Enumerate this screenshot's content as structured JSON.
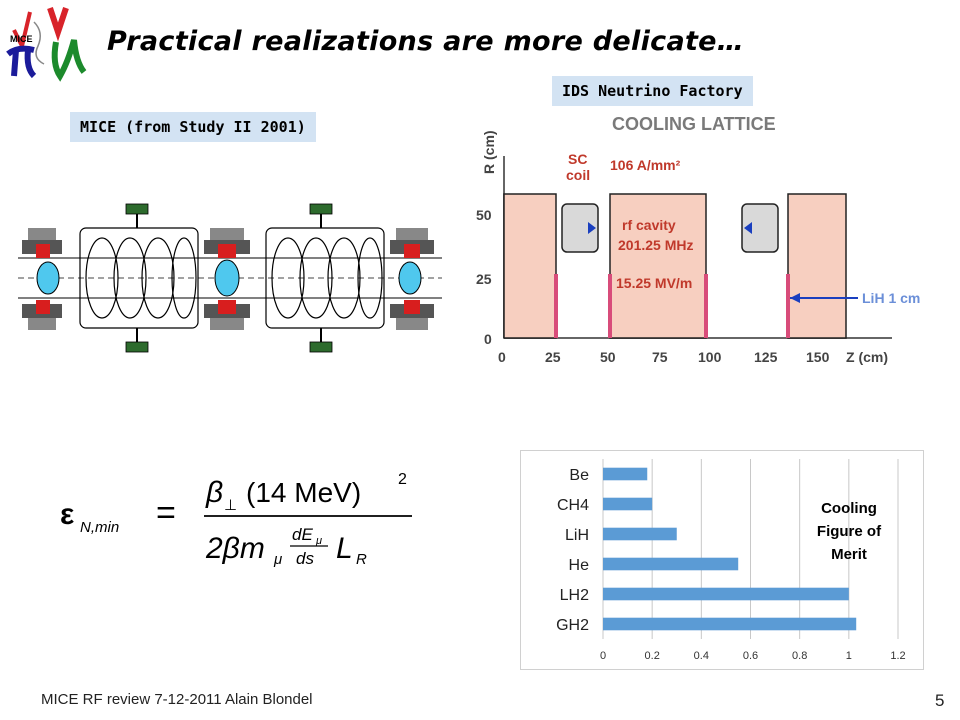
{
  "slide": {
    "title": "Practical realizations are more delicate…",
    "footer": "MICE RF review 7-12-2011 Alain Blondel",
    "page_number": "5"
  },
  "logo": {
    "text": "MICE"
  },
  "mice_panel": {
    "label": "MICE (from Study II 2001)"
  },
  "ids_panel": {
    "label": "IDS Neutrino Factory",
    "diagram_title": "COOLING LATTICE",
    "y_axis_label": "R (cm)",
    "x_axis_label": "Z (cm)",
    "y_ticks": [
      "50",
      "25",
      "0"
    ],
    "x_ticks": [
      "0",
      "25",
      "50",
      "75",
      "100",
      "125",
      "150"
    ],
    "annotations": {
      "sc_coil_line1": "SC",
      "sc_coil_line2": "coil",
      "current_density": "106 A/mm²",
      "rf_line1": "rf cavity",
      "rf_line2": "201.25 MHz",
      "gradient": "15.25 MV/m",
      "absorber": "LiH 1 cm"
    },
    "colors": {
      "fill": "#f7cfc0",
      "outline": "#222222",
      "accent": "#1a3fbf"
    }
  },
  "formula": {
    "lhs": "ε",
    "lhs_sub": "N,min",
    "equals": "=",
    "num_beta": "β",
    "num_beta_sub": "⊥",
    "num_rest": "(14 MeV)",
    "num_exp": "2",
    "den_two_beta": "2βm",
    "den_mu": "μ",
    "frac_num": "dE",
    "frac_num_sub": "μ",
    "frac_den": "ds",
    "den_L": "L",
    "den_L_sub": "R"
  },
  "chart_data": {
    "type": "bar",
    "orientation": "horizontal",
    "categories": [
      "Be",
      "CH4",
      "LiH",
      "He",
      "LH2",
      "GH2"
    ],
    "values": [
      0.18,
      0.2,
      0.3,
      0.55,
      1.0,
      1.03
    ],
    "xlim": [
      0,
      1.2
    ],
    "xticks": [
      "0",
      "0.2",
      "0.4",
      "0.6",
      "0.8",
      "1",
      "1.2"
    ],
    "grid": true,
    "bar_color": "#5b9bd5",
    "annotation_lines": [
      "Cooling",
      "Figure of",
      "Merit"
    ]
  }
}
